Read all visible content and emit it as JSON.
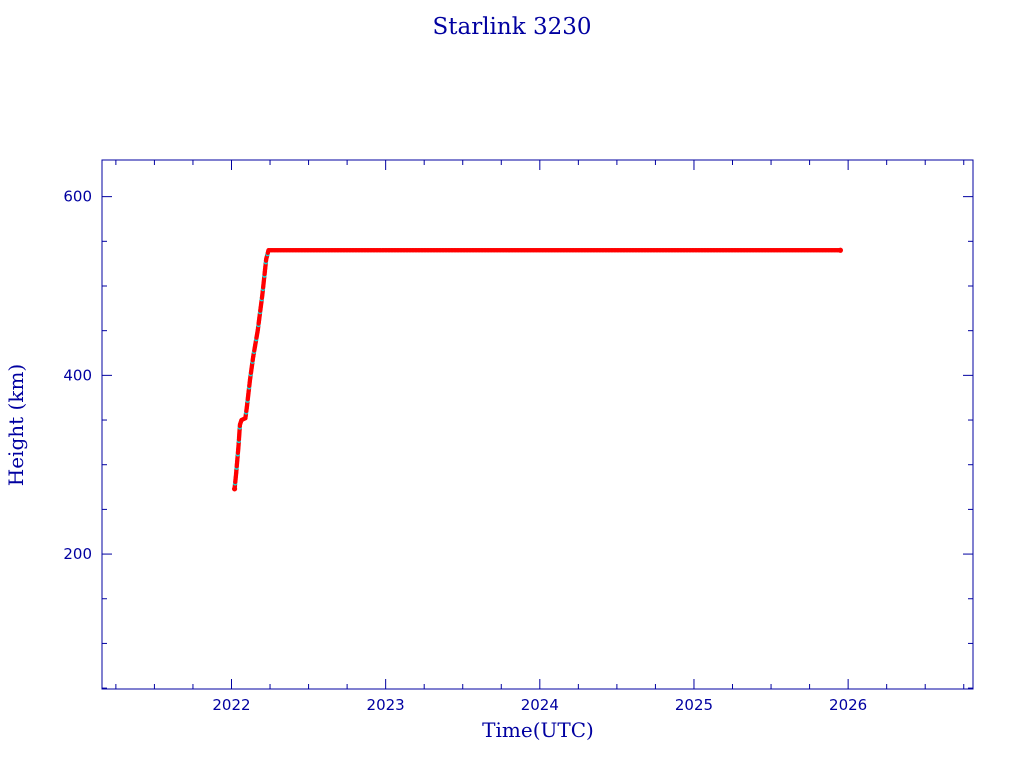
{
  "chart_data": {
    "type": "scatter",
    "title": "Starlink 3230",
    "xlabel": "Time(UTC)",
    "ylabel": "Height (km)",
    "xlim": [
      2021.16,
      2026.81
    ],
    "ylim": [
      49,
      641
    ],
    "xticks": [
      "2022",
      "2023",
      "2024",
      "2025",
      "2026"
    ],
    "yticks": [
      "200",
      "400",
      "600"
    ],
    "grid": false,
    "colors": {
      "axis": "#0000a0",
      "points": "#ff0000",
      "secondary_points": "#00e0e0"
    },
    "points": [
      [
        2022.02,
        273
      ],
      [
        2022.03,
        290
      ],
      [
        2022.045,
        320
      ],
      [
        2022.055,
        345
      ],
      [
        2022.065,
        350
      ],
      [
        2022.09,
        352
      ],
      [
        2022.1,
        365
      ],
      [
        2022.12,
        395
      ],
      [
        2022.14,
        420
      ],
      [
        2022.17,
        450
      ],
      [
        2022.2,
        490
      ],
      [
        2022.225,
        530
      ],
      [
        2022.24,
        540
      ],
      [
        2025.95,
        540
      ]
    ]
  }
}
